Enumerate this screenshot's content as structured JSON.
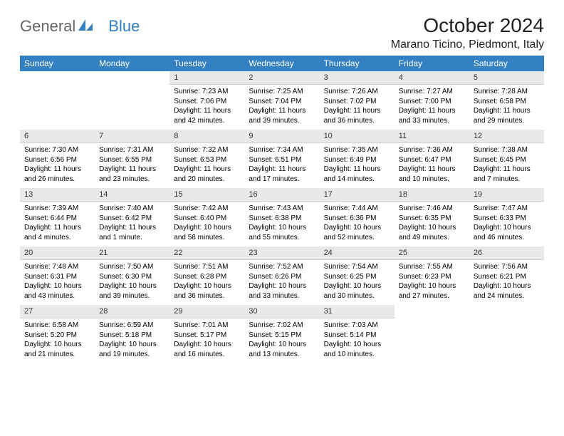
{
  "logo": {
    "text1": "General",
    "text2": "Blue"
  },
  "title": "October 2024",
  "location": "Marano Ticino, Piedmont, Italy",
  "day_headers": [
    "Sunday",
    "Monday",
    "Tuesday",
    "Wednesday",
    "Thursday",
    "Friday",
    "Saturday"
  ],
  "colors": {
    "header_bg": "#3380c2",
    "header_text": "#ffffff",
    "daynum_bg": "#e9e9e9",
    "logo_blue": "#3380c2",
    "logo_gray": "#666666"
  },
  "weeks": [
    {
      "days": [
        {
          "n": "",
          "sunrise": "",
          "sunset": "",
          "daylight_a": "",
          "daylight_b": ""
        },
        {
          "n": "",
          "sunrise": "",
          "sunset": "",
          "daylight_a": "",
          "daylight_b": ""
        },
        {
          "n": "1",
          "sunrise": "Sunrise: 7:23 AM",
          "sunset": "Sunset: 7:06 PM",
          "daylight_a": "Daylight: 11 hours",
          "daylight_b": "and 42 minutes."
        },
        {
          "n": "2",
          "sunrise": "Sunrise: 7:25 AM",
          "sunset": "Sunset: 7:04 PM",
          "daylight_a": "Daylight: 11 hours",
          "daylight_b": "and 39 minutes."
        },
        {
          "n": "3",
          "sunrise": "Sunrise: 7:26 AM",
          "sunset": "Sunset: 7:02 PM",
          "daylight_a": "Daylight: 11 hours",
          "daylight_b": "and 36 minutes."
        },
        {
          "n": "4",
          "sunrise": "Sunrise: 7:27 AM",
          "sunset": "Sunset: 7:00 PM",
          "daylight_a": "Daylight: 11 hours",
          "daylight_b": "and 33 minutes."
        },
        {
          "n": "5",
          "sunrise": "Sunrise: 7:28 AM",
          "sunset": "Sunset: 6:58 PM",
          "daylight_a": "Daylight: 11 hours",
          "daylight_b": "and 29 minutes."
        }
      ]
    },
    {
      "days": [
        {
          "n": "6",
          "sunrise": "Sunrise: 7:30 AM",
          "sunset": "Sunset: 6:56 PM",
          "daylight_a": "Daylight: 11 hours",
          "daylight_b": "and 26 minutes."
        },
        {
          "n": "7",
          "sunrise": "Sunrise: 7:31 AM",
          "sunset": "Sunset: 6:55 PM",
          "daylight_a": "Daylight: 11 hours",
          "daylight_b": "and 23 minutes."
        },
        {
          "n": "8",
          "sunrise": "Sunrise: 7:32 AM",
          "sunset": "Sunset: 6:53 PM",
          "daylight_a": "Daylight: 11 hours",
          "daylight_b": "and 20 minutes."
        },
        {
          "n": "9",
          "sunrise": "Sunrise: 7:34 AM",
          "sunset": "Sunset: 6:51 PM",
          "daylight_a": "Daylight: 11 hours",
          "daylight_b": "and 17 minutes."
        },
        {
          "n": "10",
          "sunrise": "Sunrise: 7:35 AM",
          "sunset": "Sunset: 6:49 PM",
          "daylight_a": "Daylight: 11 hours",
          "daylight_b": "and 14 minutes."
        },
        {
          "n": "11",
          "sunrise": "Sunrise: 7:36 AM",
          "sunset": "Sunset: 6:47 PM",
          "daylight_a": "Daylight: 11 hours",
          "daylight_b": "and 10 minutes."
        },
        {
          "n": "12",
          "sunrise": "Sunrise: 7:38 AM",
          "sunset": "Sunset: 6:45 PM",
          "daylight_a": "Daylight: 11 hours",
          "daylight_b": "and 7 minutes."
        }
      ]
    },
    {
      "days": [
        {
          "n": "13",
          "sunrise": "Sunrise: 7:39 AM",
          "sunset": "Sunset: 6:44 PM",
          "daylight_a": "Daylight: 11 hours",
          "daylight_b": "and 4 minutes."
        },
        {
          "n": "14",
          "sunrise": "Sunrise: 7:40 AM",
          "sunset": "Sunset: 6:42 PM",
          "daylight_a": "Daylight: 11 hours",
          "daylight_b": "and 1 minute."
        },
        {
          "n": "15",
          "sunrise": "Sunrise: 7:42 AM",
          "sunset": "Sunset: 6:40 PM",
          "daylight_a": "Daylight: 10 hours",
          "daylight_b": "and 58 minutes."
        },
        {
          "n": "16",
          "sunrise": "Sunrise: 7:43 AM",
          "sunset": "Sunset: 6:38 PM",
          "daylight_a": "Daylight: 10 hours",
          "daylight_b": "and 55 minutes."
        },
        {
          "n": "17",
          "sunrise": "Sunrise: 7:44 AM",
          "sunset": "Sunset: 6:36 PM",
          "daylight_a": "Daylight: 10 hours",
          "daylight_b": "and 52 minutes."
        },
        {
          "n": "18",
          "sunrise": "Sunrise: 7:46 AM",
          "sunset": "Sunset: 6:35 PM",
          "daylight_a": "Daylight: 10 hours",
          "daylight_b": "and 49 minutes."
        },
        {
          "n": "19",
          "sunrise": "Sunrise: 7:47 AM",
          "sunset": "Sunset: 6:33 PM",
          "daylight_a": "Daylight: 10 hours",
          "daylight_b": "and 46 minutes."
        }
      ]
    },
    {
      "days": [
        {
          "n": "20",
          "sunrise": "Sunrise: 7:48 AM",
          "sunset": "Sunset: 6:31 PM",
          "daylight_a": "Daylight: 10 hours",
          "daylight_b": "and 43 minutes."
        },
        {
          "n": "21",
          "sunrise": "Sunrise: 7:50 AM",
          "sunset": "Sunset: 6:30 PM",
          "daylight_a": "Daylight: 10 hours",
          "daylight_b": "and 39 minutes."
        },
        {
          "n": "22",
          "sunrise": "Sunrise: 7:51 AM",
          "sunset": "Sunset: 6:28 PM",
          "daylight_a": "Daylight: 10 hours",
          "daylight_b": "and 36 minutes."
        },
        {
          "n": "23",
          "sunrise": "Sunrise: 7:52 AM",
          "sunset": "Sunset: 6:26 PM",
          "daylight_a": "Daylight: 10 hours",
          "daylight_b": "and 33 minutes."
        },
        {
          "n": "24",
          "sunrise": "Sunrise: 7:54 AM",
          "sunset": "Sunset: 6:25 PM",
          "daylight_a": "Daylight: 10 hours",
          "daylight_b": "and 30 minutes."
        },
        {
          "n": "25",
          "sunrise": "Sunrise: 7:55 AM",
          "sunset": "Sunset: 6:23 PM",
          "daylight_a": "Daylight: 10 hours",
          "daylight_b": "and 27 minutes."
        },
        {
          "n": "26",
          "sunrise": "Sunrise: 7:56 AM",
          "sunset": "Sunset: 6:21 PM",
          "daylight_a": "Daylight: 10 hours",
          "daylight_b": "and 24 minutes."
        }
      ]
    },
    {
      "days": [
        {
          "n": "27",
          "sunrise": "Sunrise: 6:58 AM",
          "sunset": "Sunset: 5:20 PM",
          "daylight_a": "Daylight: 10 hours",
          "daylight_b": "and 21 minutes."
        },
        {
          "n": "28",
          "sunrise": "Sunrise: 6:59 AM",
          "sunset": "Sunset: 5:18 PM",
          "daylight_a": "Daylight: 10 hours",
          "daylight_b": "and 19 minutes."
        },
        {
          "n": "29",
          "sunrise": "Sunrise: 7:01 AM",
          "sunset": "Sunset: 5:17 PM",
          "daylight_a": "Daylight: 10 hours",
          "daylight_b": "and 16 minutes."
        },
        {
          "n": "30",
          "sunrise": "Sunrise: 7:02 AM",
          "sunset": "Sunset: 5:15 PM",
          "daylight_a": "Daylight: 10 hours",
          "daylight_b": "and 13 minutes."
        },
        {
          "n": "31",
          "sunrise": "Sunrise: 7:03 AM",
          "sunset": "Sunset: 5:14 PM",
          "daylight_a": "Daylight: 10 hours",
          "daylight_b": "and 10 minutes."
        },
        {
          "n": "",
          "sunrise": "",
          "sunset": "",
          "daylight_a": "",
          "daylight_b": ""
        },
        {
          "n": "",
          "sunrise": "",
          "sunset": "",
          "daylight_a": "",
          "daylight_b": ""
        }
      ]
    }
  ]
}
